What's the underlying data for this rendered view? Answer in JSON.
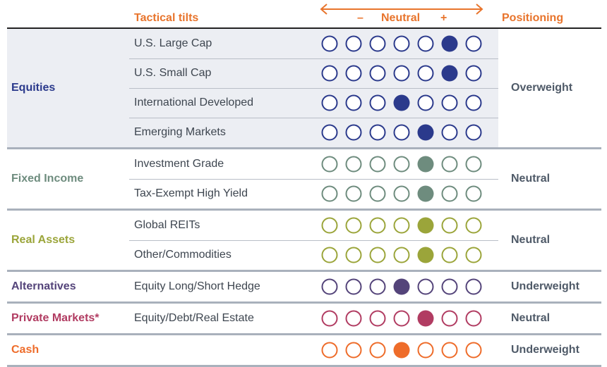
{
  "header": {
    "tilts_label": "Tactical tilts",
    "minus": "–",
    "neutral": "Neutral",
    "plus": "+",
    "positioning_label": "Positioning"
  },
  "colors": {
    "Equities": "#2b3a8c",
    "Fixed Income": "#6e8c7e",
    "Real Assets": "#9ba53a",
    "Alternatives": "#54447a",
    "Private Markets": "#b13c62",
    "Cash": "#ee6c2a",
    "accent": "#e8742c"
  },
  "chart_data": {
    "type": "table",
    "title": "Tactical tilts",
    "scale": {
      "levels": 7,
      "neutral_index": 3,
      "low_label": "–",
      "mid_label": "Neutral",
      "high_label": "+"
    },
    "groups": [
      {
        "asset_class": "Equities",
        "positioning": "Overweight",
        "rows": [
          {
            "label": "U.S. Large Cap",
            "tilt": 5
          },
          {
            "label": "U.S. Small Cap",
            "tilt": 5
          },
          {
            "label": "International Developed",
            "tilt": 3
          },
          {
            "label": "Emerging Markets",
            "tilt": 4
          }
        ]
      },
      {
        "asset_class": "Fixed Income",
        "positioning": "Neutral",
        "rows": [
          {
            "label": "Investment Grade",
            "tilt": 4
          },
          {
            "label": "Tax-Exempt High Yield",
            "tilt": 4
          }
        ]
      },
      {
        "asset_class": "Real Assets",
        "positioning": "Neutral",
        "rows": [
          {
            "label": "Global REITs",
            "tilt": 4
          },
          {
            "label": "Other/Commodities",
            "tilt": 4
          }
        ]
      },
      {
        "asset_class": "Alternatives",
        "positioning": "Underweight",
        "rows": [
          {
            "label": "Equity Long/Short Hedge",
            "tilt": 3
          }
        ]
      },
      {
        "asset_class": "Private Markets*",
        "positioning": "Neutral",
        "rows": [
          {
            "label": "Equity/Debt/Real Estate",
            "tilt": 4
          }
        ]
      },
      {
        "asset_class": "Cash",
        "positioning": "Underweight",
        "rows": [
          {
            "label": "",
            "tilt": 3
          }
        ]
      }
    ]
  }
}
